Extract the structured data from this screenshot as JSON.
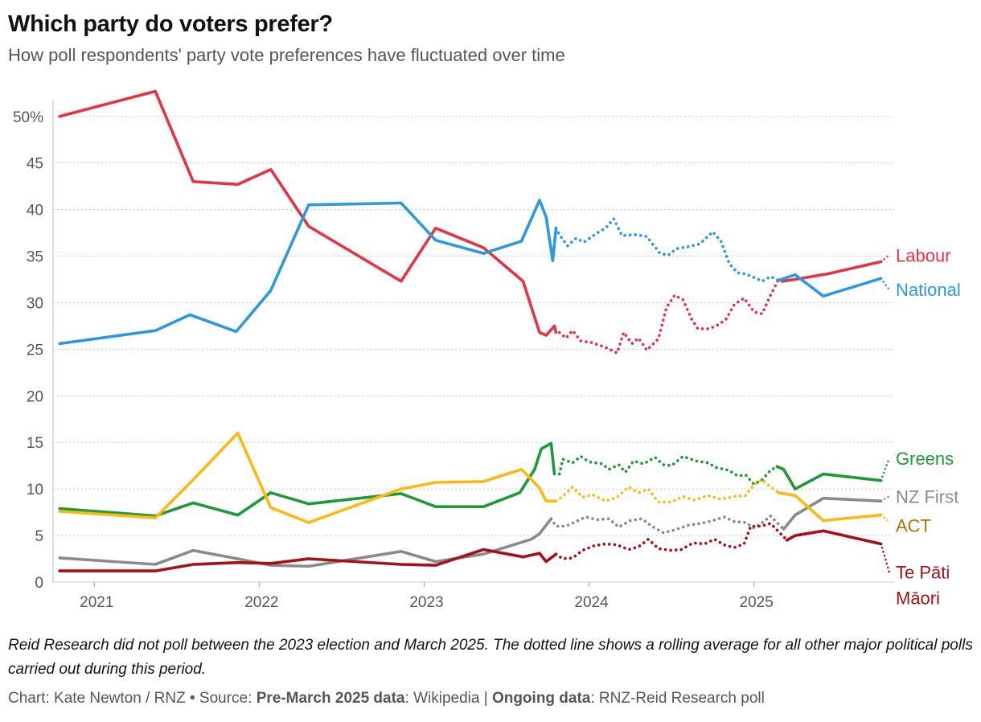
{
  "title": "Which party do voters prefer?",
  "subtitle": "How poll respondents' party vote preferences have fluctuated over time",
  "note": "Reid Research did not poll between the 2023 election and March 2025. The dotted line shows a rolling average for all other major political polls carried out during this period.",
  "source": {
    "chart_credit": "Chart: Kate Newton / RNZ",
    "separator": "•",
    "source_prefix": "Source:",
    "pre_label": "Pre-March 2025 data",
    "pre_value": ": Wikipedia |",
    "ongoing_label": "Ongoing data",
    "ongoing_value": ": RNZ-Reid Research poll"
  },
  "chart_data": {
    "type": "line",
    "x_axis": {
      "min": 2020.75,
      "max": 2025.85,
      "ticks": [
        2021,
        2022,
        2023,
        2024,
        2025
      ],
      "tick_labels": [
        "2021",
        "2022",
        "2023",
        "2024",
        "2025"
      ]
    },
    "y_axis": {
      "min": 0,
      "max": 53,
      "ticks": [
        0,
        5,
        10,
        15,
        20,
        25,
        30,
        35,
        40,
        45,
        50
      ],
      "tick_labels": [
        "0",
        "5",
        "10",
        "15",
        "20",
        "25",
        "30",
        "35",
        "40",
        "45",
        "50%"
      ]
    },
    "grid": true,
    "series": [
      {
        "name": "Labour",
        "label_lines": [
          "Labour"
        ],
        "color": "#e63241",
        "solid": [
          [
            2020.79,
            50
          ],
          [
            2021.37,
            52.7
          ],
          [
            2021.6,
            43
          ],
          [
            2021.87,
            42.7
          ],
          [
            2022.07,
            44.3
          ],
          [
            2022.3,
            38.2
          ],
          [
            2022.86,
            32.3
          ],
          [
            2023.07,
            38
          ],
          [
            2023.36,
            35.9
          ],
          [
            2023.6,
            32.3
          ],
          [
            2023.7,
            26.8
          ],
          [
            2023.74,
            26.5
          ],
          [
            2023.79,
            27.5
          ],
          [
            2023.8,
            26.8
          ]
        ],
        "dotted": [
          [
            2023.82,
            26.8
          ],
          [
            2023.86,
            26.2
          ],
          [
            2023.9,
            27
          ],
          [
            2023.95,
            25.9
          ],
          [
            2024.02,
            25.7
          ],
          [
            2024.1,
            25.2
          ],
          [
            2024.17,
            24.6
          ],
          [
            2024.21,
            26.8
          ],
          [
            2024.26,
            25.6
          ],
          [
            2024.3,
            26.2
          ],
          [
            2024.35,
            24.9
          ],
          [
            2024.42,
            26.1
          ],
          [
            2024.47,
            29.5
          ],
          [
            2024.52,
            30.8
          ],
          [
            2024.57,
            30.3
          ],
          [
            2024.62,
            28.3
          ],
          [
            2024.66,
            27.2
          ],
          [
            2024.73,
            27.2
          ],
          [
            2024.78,
            27.6
          ],
          [
            2024.83,
            28.2
          ],
          [
            2024.88,
            29.8
          ],
          [
            2024.94,
            30.5
          ],
          [
            2025.0,
            29
          ],
          [
            2025.05,
            28.8
          ],
          [
            2025.1,
            30.8
          ],
          [
            2025.15,
            32.5
          ]
        ],
        "solid2": [
          [
            2025.17,
            32.3
          ],
          [
            2025.25,
            32.5
          ],
          [
            2025.45,
            33.1
          ],
          [
            2025.77,
            34.4
          ]
        ],
        "tail": [
          [
            2025.77,
            34.4
          ],
          [
            2025.82,
            35.1
          ]
        ]
      },
      {
        "name": "National",
        "label_lines": [
          "National"
        ],
        "color": "#2b98e0",
        "solid": [
          [
            2020.79,
            25.6
          ],
          [
            2021.37,
            27
          ],
          [
            2021.58,
            28.7
          ],
          [
            2021.86,
            26.9
          ],
          [
            2022.07,
            31.3
          ],
          [
            2022.3,
            40.5
          ],
          [
            2022.86,
            40.7
          ],
          [
            2023.07,
            36.7
          ],
          [
            2023.36,
            35.3
          ],
          [
            2023.59,
            36.6
          ],
          [
            2023.7,
            41
          ],
          [
            2023.74,
            39.2
          ],
          [
            2023.78,
            34.5
          ],
          [
            2023.8,
            38
          ]
        ],
        "dotted": [
          [
            2023.8,
            38
          ],
          [
            2023.82,
            37.3
          ],
          [
            2023.87,
            36.1
          ],
          [
            2023.92,
            36.9
          ],
          [
            2023.97,
            36.5
          ],
          [
            2024.05,
            37.5
          ],
          [
            2024.1,
            38
          ],
          [
            2024.15,
            39
          ],
          [
            2024.2,
            37.2
          ],
          [
            2024.28,
            37.3
          ],
          [
            2024.35,
            37.1
          ],
          [
            2024.43,
            35.3
          ],
          [
            2024.48,
            35.1
          ],
          [
            2024.53,
            35.8
          ],
          [
            2024.6,
            36
          ],
          [
            2024.67,
            36.3
          ],
          [
            2024.75,
            37.6
          ],
          [
            2024.8,
            36.6
          ],
          [
            2024.85,
            34.2
          ],
          [
            2024.9,
            33.2
          ],
          [
            2024.95,
            33.1
          ],
          [
            2025.05,
            32.3
          ],
          [
            2025.1,
            32.8
          ],
          [
            2025.15,
            32.4
          ]
        ],
        "solid2": [
          [
            2025.15,
            32.4
          ],
          [
            2025.25,
            33
          ],
          [
            2025.42,
            30.7
          ],
          [
            2025.77,
            32.6
          ]
        ],
        "tail": [
          [
            2025.77,
            32.6
          ],
          [
            2025.82,
            31.4
          ]
        ]
      },
      {
        "name": "Greens",
        "label_lines": [
          "Greens"
        ],
        "color": "#1f9a38",
        "solid": [
          [
            2020.79,
            7.9
          ],
          [
            2021.37,
            7.1
          ],
          [
            2021.6,
            8.5
          ],
          [
            2021.87,
            7.2
          ],
          [
            2022.07,
            9.6
          ],
          [
            2022.3,
            8.4
          ],
          [
            2022.86,
            9.5
          ],
          [
            2023.07,
            8.1
          ],
          [
            2023.36,
            8.1
          ],
          [
            2023.58,
            9.6
          ],
          [
            2023.67,
            12.1
          ],
          [
            2023.71,
            14.3
          ],
          [
            2023.77,
            14.9
          ],
          [
            2023.79,
            11.6
          ]
        ],
        "dotted": [
          [
            2023.82,
            11.6
          ],
          [
            2023.84,
            13.2
          ],
          [
            2023.9,
            12.8
          ],
          [
            2023.95,
            13.5
          ],
          [
            2024.0,
            12.9
          ],
          [
            2024.08,
            12.7
          ],
          [
            2024.12,
            12.1
          ],
          [
            2024.18,
            12.6
          ],
          [
            2024.22,
            11.8
          ],
          [
            2024.27,
            13
          ],
          [
            2024.33,
            12.7
          ],
          [
            2024.4,
            13.4
          ],
          [
            2024.45,
            12.6
          ],
          [
            2024.5,
            12.5
          ],
          [
            2024.57,
            13.5
          ],
          [
            2024.65,
            13
          ],
          [
            2024.72,
            12.8
          ],
          [
            2024.77,
            12.3
          ],
          [
            2024.85,
            12
          ],
          [
            2024.9,
            11.4
          ],
          [
            2024.95,
            11.5
          ],
          [
            2025.0,
            10.5
          ],
          [
            2025.05,
            11
          ],
          [
            2025.1,
            12
          ],
          [
            2025.14,
            12.4
          ]
        ],
        "solid2": [
          [
            2025.14,
            12.4
          ],
          [
            2025.18,
            12.1
          ],
          [
            2025.25,
            10
          ],
          [
            2025.42,
            11.6
          ],
          [
            2025.77,
            10.9
          ]
        ],
        "tail": [
          [
            2025.77,
            10.9
          ],
          [
            2025.82,
            13.3
          ]
        ]
      },
      {
        "name": "NZ First",
        "label_lines": [
          "NZ First"
        ],
        "color": "#8a8a8a",
        "solid": [
          [
            2020.79,
            2.6
          ],
          [
            2021.37,
            1.9
          ],
          [
            2021.6,
            3.4
          ],
          [
            2021.87,
            2.5
          ],
          [
            2022.07,
            1.8
          ],
          [
            2022.3,
            1.7
          ],
          [
            2022.86,
            3.3
          ],
          [
            2023.07,
            2.2
          ],
          [
            2023.36,
            3
          ],
          [
            2023.65,
            4.6
          ],
          [
            2023.7,
            5.2
          ],
          [
            2023.77,
            6.8
          ]
        ],
        "dotted": [
          [
            2023.77,
            6.8
          ],
          [
            2023.8,
            6
          ],
          [
            2023.86,
            6
          ],
          [
            2023.92,
            6.5
          ],
          [
            2023.98,
            7
          ],
          [
            2024.05,
            6.7
          ],
          [
            2024.12,
            6.8
          ],
          [
            2024.18,
            5.9
          ],
          [
            2024.25,
            6.6
          ],
          [
            2024.32,
            6.8
          ],
          [
            2024.38,
            6
          ],
          [
            2024.45,
            5.3
          ],
          [
            2024.52,
            5.6
          ],
          [
            2024.6,
            6.1
          ],
          [
            2024.68,
            6.3
          ],
          [
            2024.75,
            6.6
          ],
          [
            2024.82,
            7
          ],
          [
            2024.88,
            6.5
          ],
          [
            2024.95,
            6.4
          ],
          [
            2025.0,
            5.8
          ],
          [
            2025.06,
            6.5
          ],
          [
            2025.1,
            7.1
          ],
          [
            2025.15,
            6.2
          ],
          [
            2025.18,
            5.7
          ]
        ],
        "solid2": [
          [
            2025.18,
            5.7
          ],
          [
            2025.25,
            7.2
          ],
          [
            2025.42,
            9
          ],
          [
            2025.77,
            8.7
          ]
        ],
        "tail": [
          [
            2025.77,
            8.7
          ],
          [
            2025.82,
            9.2
          ]
        ]
      },
      {
        "name": "ACT",
        "label_lines": [
          "ACT"
        ],
        "color": "#fdb813",
        "label_color": "#a67700",
        "solid": [
          [
            2020.79,
            7.6
          ],
          [
            2021.37,
            6.9
          ],
          [
            2021.6,
            11
          ],
          [
            2021.87,
            16
          ],
          [
            2022.07,
            8
          ],
          [
            2022.3,
            6.4
          ],
          [
            2022.86,
            10
          ],
          [
            2023.07,
            10.7
          ],
          [
            2023.36,
            10.8
          ],
          [
            2023.59,
            12.1
          ],
          [
            2023.7,
            10.1
          ],
          [
            2023.74,
            8.7
          ],
          [
            2023.79,
            8.7
          ]
        ],
        "dotted": [
          [
            2023.8,
            8.7
          ],
          [
            2023.84,
            9.2
          ],
          [
            2023.9,
            10.2
          ],
          [
            2023.96,
            9.1
          ],
          [
            2024.02,
            9.4
          ],
          [
            2024.1,
            8.7
          ],
          [
            2024.17,
            9.1
          ],
          [
            2024.24,
            10.2
          ],
          [
            2024.3,
            9.6
          ],
          [
            2024.36,
            10
          ],
          [
            2024.42,
            8.6
          ],
          [
            2024.5,
            8.6
          ],
          [
            2024.57,
            9.2
          ],
          [
            2024.64,
            8.8
          ],
          [
            2024.72,
            9.3
          ],
          [
            2024.8,
            8.9
          ],
          [
            2024.88,
            9.2
          ],
          [
            2024.95,
            9.3
          ],
          [
            2025.0,
            10.5
          ],
          [
            2025.05,
            11
          ],
          [
            2025.1,
            10.2
          ],
          [
            2025.15,
            9.6
          ]
        ],
        "solid2": [
          [
            2025.15,
            9.6
          ],
          [
            2025.25,
            9.3
          ],
          [
            2025.42,
            6.6
          ],
          [
            2025.77,
            7.2
          ]
        ],
        "tail": [
          [
            2025.77,
            7.2
          ],
          [
            2025.82,
            6.5
          ]
        ]
      },
      {
        "name": "Te Pāti Māori",
        "label_lines": [
          "Te Pāti",
          "Māori"
        ],
        "color": "#a50f15",
        "solid": [
          [
            2020.79,
            1.2
          ],
          [
            2021.37,
            1.2
          ],
          [
            2021.6,
            1.9
          ],
          [
            2021.87,
            2.1
          ],
          [
            2022.07,
            2
          ],
          [
            2022.3,
            2.5
          ],
          [
            2022.86,
            1.9
          ],
          [
            2023.07,
            1.8
          ],
          [
            2023.36,
            3.5
          ],
          [
            2023.6,
            2.7
          ],
          [
            2023.7,
            3.1
          ],
          [
            2023.74,
            2.2
          ],
          [
            2023.8,
            3
          ]
        ],
        "dotted": [
          [
            2023.8,
            3
          ],
          [
            2023.84,
            2.5
          ],
          [
            2023.9,
            2.6
          ],
          [
            2023.96,
            3.4
          ],
          [
            2024.03,
            3.9
          ],
          [
            2024.1,
            4.1
          ],
          [
            2024.17,
            4
          ],
          [
            2024.24,
            3.5
          ],
          [
            2024.3,
            3.8
          ],
          [
            2024.36,
            4.6
          ],
          [
            2024.42,
            3.6
          ],
          [
            2024.5,
            3.4
          ],
          [
            2024.56,
            3.5
          ],
          [
            2024.63,
            4.2
          ],
          [
            2024.7,
            4.1
          ],
          [
            2024.76,
            4.6
          ],
          [
            2024.82,
            4
          ],
          [
            2024.88,
            3.7
          ],
          [
            2024.94,
            4.1
          ],
          [
            2024.98,
            6
          ],
          [
            2025.04,
            6
          ],
          [
            2025.1,
            6.3
          ],
          [
            2025.15,
            5.4
          ],
          [
            2025.2,
            4.5
          ]
        ],
        "solid2": [
          [
            2025.2,
            4.5
          ],
          [
            2025.25,
            5
          ],
          [
            2025.42,
            5.5
          ],
          [
            2025.77,
            4.1
          ]
        ],
        "tail": [
          [
            2025.77,
            4.1
          ],
          [
            2025.82,
            1.1
          ]
        ]
      }
    ]
  }
}
